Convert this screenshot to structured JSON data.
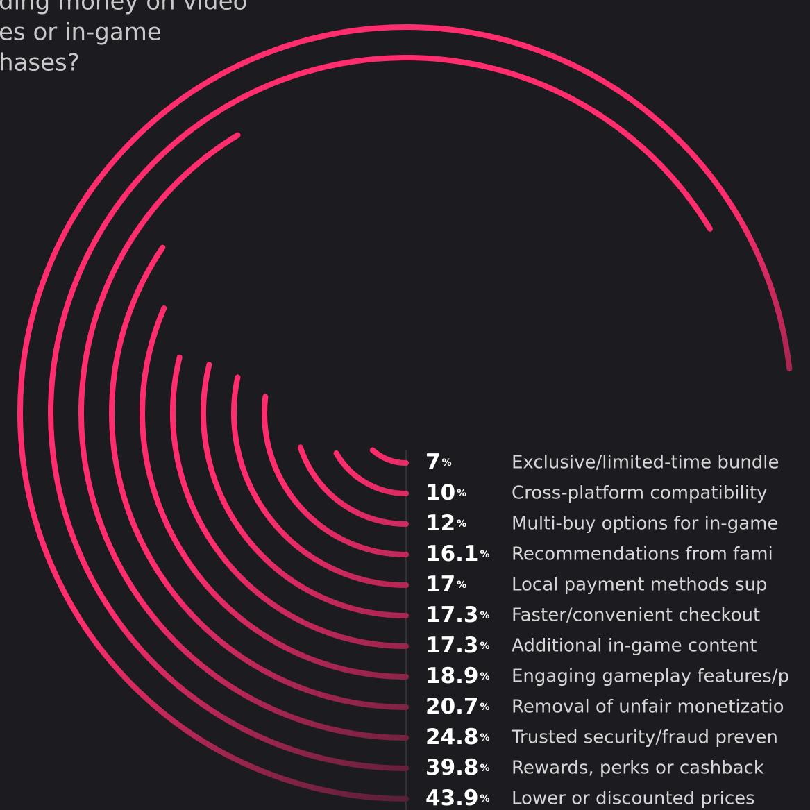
{
  "chart_data": {
    "type": "radial-bar",
    "title_lines": [
      "ding money on video",
      "es or in-game",
      "hases?"
    ],
    "unit": "%",
    "categories": [
      "Exclusive/limited-time bundle",
      "Cross-platform compatibility",
      "Multi-buy options for in-game",
      "Recommendations from fami",
      "Local payment methods sup",
      "Faster/convenient checkout",
      "Additional in-game content",
      "Engaging gameplay features/p",
      "Removal of unfair monetizatio",
      "Trusted security/fraud preven",
      "Rewards, perks or cashback",
      "Lower or discounted prices"
    ],
    "values": [
      7,
      10,
      12,
      16.1,
      17,
      17.3,
      17.3,
      18.9,
      20.7,
      24.8,
      39.8,
      43.9
    ],
    "color": "#ff2d6e"
  }
}
